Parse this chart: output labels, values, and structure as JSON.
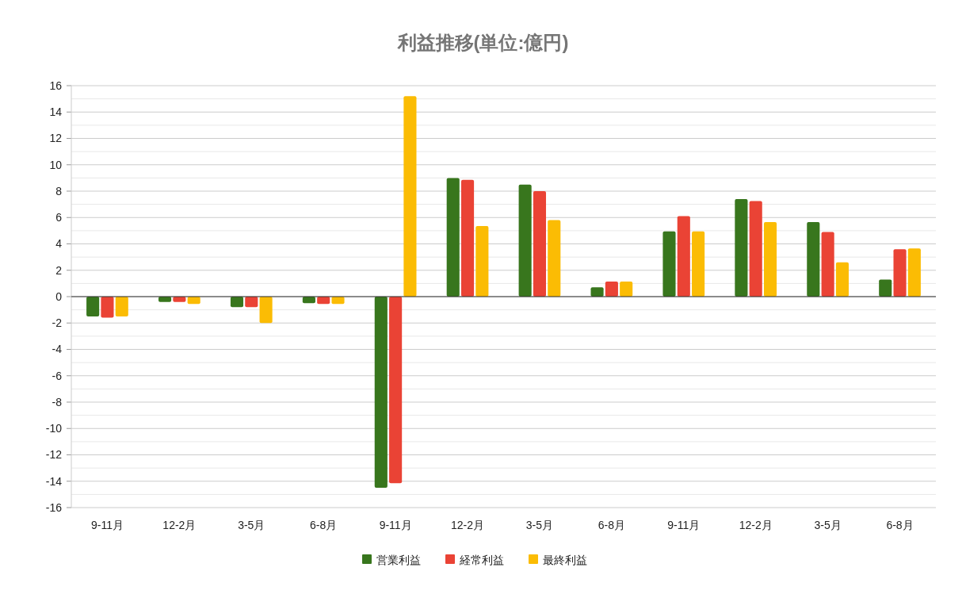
{
  "chart_data": {
    "type": "bar",
    "title": "利益推移(単位:億円)",
    "categories": [
      "9-11月",
      "12-2月",
      "3-5月",
      "6-8月",
      "9-11月",
      "12-2月",
      "3-5月",
      "6-8月",
      "9-11月",
      "12-2月",
      "3-5月",
      "6-8月"
    ],
    "series": [
      {
        "name": "営業利益",
        "color": "#38761d",
        "values": [
          -1.5,
          -0.4,
          -0.8,
          -0.5,
          -14.5,
          9.0,
          8.5,
          0.7,
          4.95,
          7.4,
          5.65,
          1.3
        ]
      },
      {
        "name": "経常利益",
        "color": "#ea4335",
        "values": [
          -1.6,
          -0.4,
          -0.8,
          -0.55,
          -14.15,
          8.85,
          8.0,
          1.15,
          6.1,
          7.25,
          4.9,
          3.6
        ]
      },
      {
        "name": "最終利益",
        "color": "#fbbc04",
        "values": [
          -1.5,
          -0.55,
          -2.0,
          -0.55,
          15.2,
          5.35,
          5.8,
          1.15,
          4.95,
          5.65,
          2.6,
          3.65
        ]
      }
    ],
    "ylim": [
      -16,
      16
    ],
    "yticks": [
      -16,
      {
        "value": -15,
        "label": null
      },
      -14,
      {
        "value": -13,
        "label": null
      },
      -12,
      {
        "value": -11,
        "label": null
      },
      -10,
      {
        "value": -9,
        "label": null
      },
      -8,
      {
        "value": -7,
        "label": null
      },
      -6,
      {
        "value": -5,
        "label": null
      },
      -4,
      {
        "value": -3,
        "label": null
      },
      -2,
      {
        "value": -1,
        "label": null
      },
      0,
      {
        "value": 1,
        "label": null
      },
      2,
      {
        "value": 3,
        "label": null
      },
      4,
      {
        "value": 5,
        "label": null
      },
      6,
      {
        "value": 7,
        "label": null
      },
      8,
      {
        "value": 9,
        "label": null
      },
      10,
      {
        "value": 11,
        "label": null
      },
      12,
      {
        "value": 13,
        "label": null
      },
      14,
      {
        "value": 15,
        "label": null
      },
      16
    ],
    "grid": true,
    "legend": "bottom"
  }
}
